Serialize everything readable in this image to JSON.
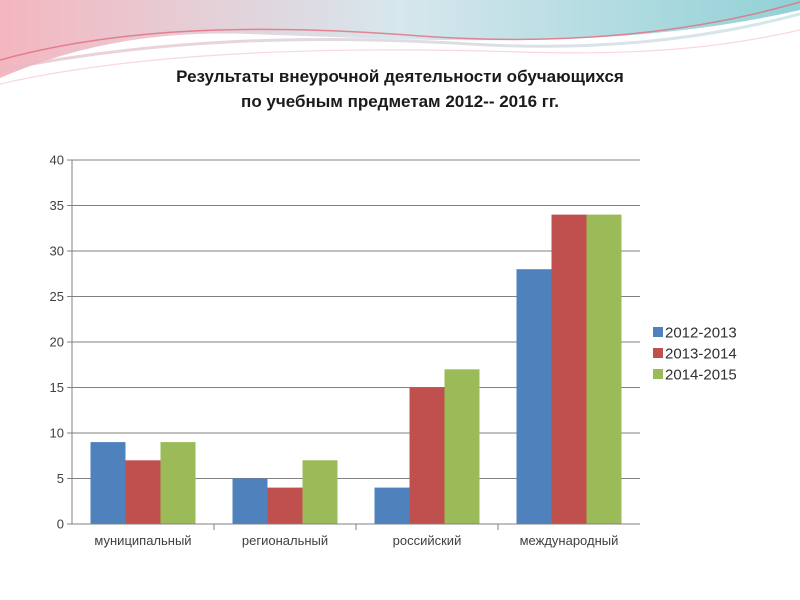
{
  "title": {
    "line1": "Результаты внеурочной деятельности обучающихся",
    "line2": "по учебным предметам  2012-- 2016 гг."
  },
  "colors": {
    "series": [
      "#4f81bd",
      "#c0504d",
      "#9bbb59"
    ],
    "grid": "#808080",
    "axis": "#808080"
  },
  "chart_data": {
    "type": "bar",
    "categories": [
      "муниципальный",
      "региональный",
      "российский",
      "международный"
    ],
    "series": [
      {
        "name": "2012-2013",
        "values": [
          9,
          5,
          4,
          28
        ]
      },
      {
        "name": "2013-2014",
        "values": [
          7,
          4,
          15,
          34
        ]
      },
      {
        "name": "2014-2015",
        "values": [
          9,
          7,
          17,
          34
        ]
      }
    ],
    "y_ticks": [
      0,
      5,
      10,
      15,
      20,
      25,
      30,
      35,
      40
    ],
    "ylim": [
      0,
      40
    ],
    "grid": true,
    "legend": "right"
  }
}
